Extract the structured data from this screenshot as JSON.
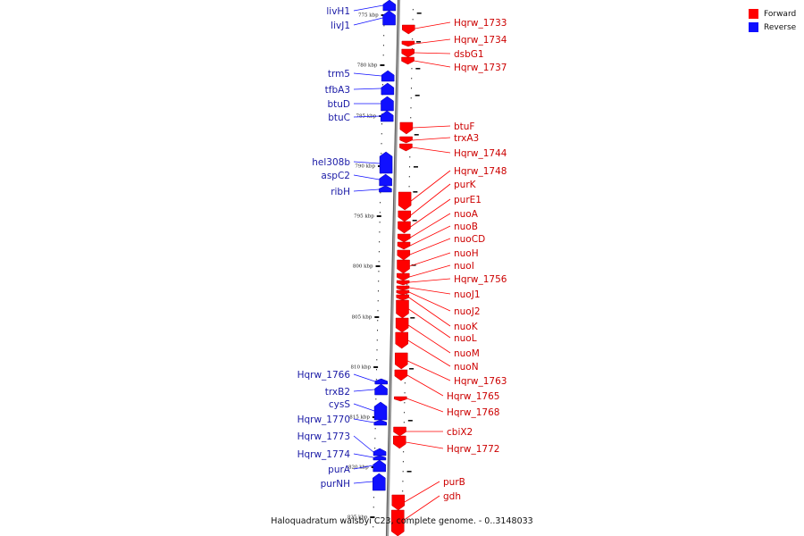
{
  "legend": {
    "forward_label": "Forward",
    "reverse_label": "Reverse",
    "forward_color": "#ff0000",
    "reverse_color": "#1010ff"
  },
  "caption": "Haloquadratum walsbyi C23, complete genome. - 0..3148033",
  "ticks": [
    "775 kbp",
    "780 kbp",
    "785 kbp",
    "790 kbp",
    "795 kbp",
    "800 kbp",
    "805 kbp",
    "810 kbp",
    "815 kbp",
    "820 kbp",
    "825 kbp"
  ],
  "genes": [
    {
      "name": "livH1",
      "strand": "reverse"
    },
    {
      "name": "livJ1",
      "strand": "reverse"
    },
    {
      "name": "Hqrw_1733",
      "strand": "forward"
    },
    {
      "name": "Hqrw_1734",
      "strand": "forward"
    },
    {
      "name": "dsbG1",
      "strand": "forward"
    },
    {
      "name": "Hqrw_1737",
      "strand": "forward"
    },
    {
      "name": "trm5",
      "strand": "reverse"
    },
    {
      "name": "tfbA3",
      "strand": "reverse"
    },
    {
      "name": "btuD",
      "strand": "reverse"
    },
    {
      "name": "btuC",
      "strand": "reverse"
    },
    {
      "name": "btuF",
      "strand": "forward"
    },
    {
      "name": "trxA3",
      "strand": "forward"
    },
    {
      "name": "Hqrw_1744",
      "strand": "forward"
    },
    {
      "name": "hel308b",
      "strand": "reverse"
    },
    {
      "name": "aspC2",
      "strand": "reverse"
    },
    {
      "name": "ribH",
      "strand": "reverse"
    },
    {
      "name": "Hqrw_1748",
      "strand": "forward"
    },
    {
      "name": "purK",
      "strand": "forward"
    },
    {
      "name": "purE1",
      "strand": "forward"
    },
    {
      "name": "nuoA",
      "strand": "forward"
    },
    {
      "name": "nuoB",
      "strand": "forward"
    },
    {
      "name": "nuoCD",
      "strand": "forward"
    },
    {
      "name": "nuoH",
      "strand": "forward"
    },
    {
      "name": "nuoI",
      "strand": "forward"
    },
    {
      "name": "Hqrw_1756",
      "strand": "forward"
    },
    {
      "name": "nuoJ1",
      "strand": "forward"
    },
    {
      "name": "nuoJ2",
      "strand": "forward"
    },
    {
      "name": "nuoK",
      "strand": "forward"
    },
    {
      "name": "nuoL",
      "strand": "forward"
    },
    {
      "name": "nuoM",
      "strand": "forward"
    },
    {
      "name": "nuoN",
      "strand": "forward"
    },
    {
      "name": "Hqrw_1763",
      "strand": "forward"
    },
    {
      "name": "Hqrw_1765",
      "strand": "forward"
    },
    {
      "name": "Hqrw_1768",
      "strand": "forward"
    },
    {
      "name": "Hqrw_1766",
      "strand": "reverse"
    },
    {
      "name": "trxB2",
      "strand": "reverse"
    },
    {
      "name": "cysS",
      "strand": "reverse"
    },
    {
      "name": "Hqrw_1770",
      "strand": "reverse"
    },
    {
      "name": "cbiX2",
      "strand": "forward"
    },
    {
      "name": "Hqrw_1772",
      "strand": "forward"
    },
    {
      "name": "Hqrw_1773",
      "strand": "reverse"
    },
    {
      "name": "Hqrw_1774",
      "strand": "reverse"
    },
    {
      "name": "purA",
      "strand": "reverse"
    },
    {
      "name": "purNH",
      "strand": "reverse"
    },
    {
      "name": "purB",
      "strand": "forward"
    },
    {
      "name": "gdh",
      "strand": "forward"
    }
  ]
}
